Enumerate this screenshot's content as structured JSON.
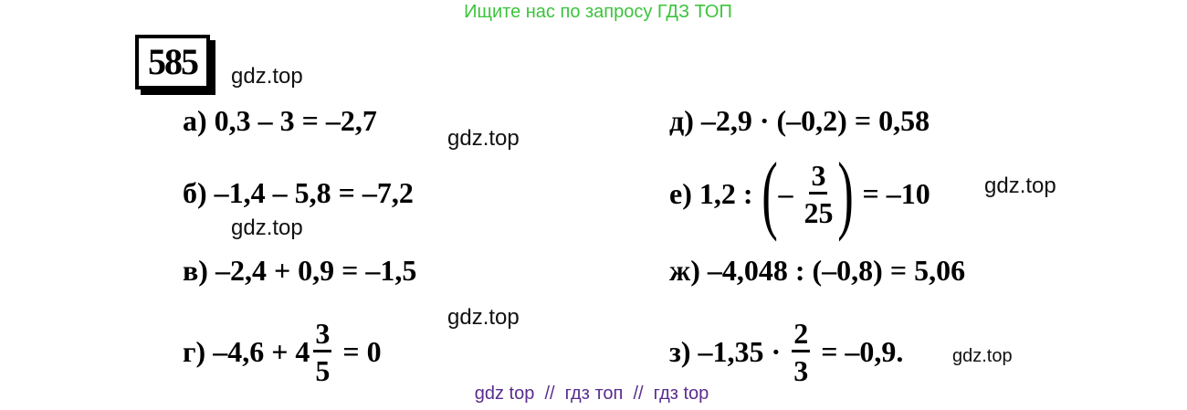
{
  "header": "Ищите нас по запросу ГДЗ ТОП",
  "task_number": "585",
  "watermark": "gdz.top",
  "left": {
    "a": "а) 0,3 – 3 = –2,7",
    "b": "б) –1,4 – 5,8 = –7,2",
    "v": "в) –2,4 + 0,9 = –1,5",
    "g": {
      "pre": "г) –4,6 + 4",
      "num": "3",
      "den": "5",
      "post": " = 0"
    }
  },
  "right": {
    "d": "д) –2,9 · (–0,2) = 0,58",
    "e": {
      "pre": "е) 1,2 : ",
      "lparen": "(",
      "minus": "– ",
      "num": "3",
      "den": "25",
      "rparen": ")",
      "post": " = –10"
    },
    "zh": "ж) –4,048 : (–0,8) = 5,06",
    "z": {
      "pre": "з) –1,35 · ",
      "num": "2",
      "den": "3",
      "post": " = –0,9."
    }
  },
  "footer": "gdz top  //  гдз топ  //  гдз top",
  "colors": {
    "header": "#3cc43c",
    "footer": "#5a2d8f"
  }
}
